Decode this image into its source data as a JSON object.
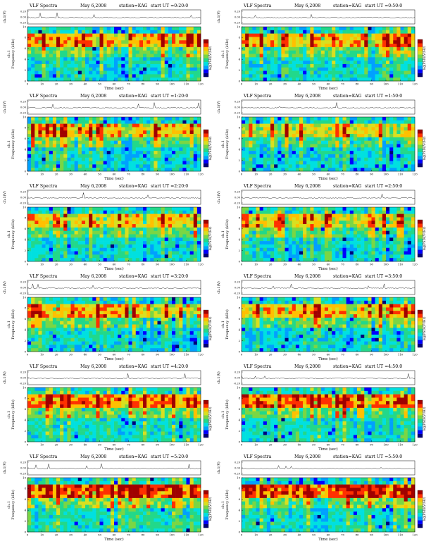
{
  "colors": {
    "scale": [
      "#00007a",
      "#0000ff",
      "#00a0ff",
      "#00e0e0",
      "#22d88a",
      "#7ad644",
      "#d8e020",
      "#ffc000",
      "#ff3000",
      "#a00000"
    ],
    "trace": "#000000",
    "background": "#ffffff"
  },
  "chart_data": [
    {
      "type": "heatmap",
      "title": "VLF Spectra",
      "date": "May 6,2008",
      "station": "station=KAG",
      "start": "start UT =0:20:0",
      "ylabel_top": "ch.1(V)",
      "yticks_top": [
        "0.20",
        "0.00",
        "-0.20"
      ],
      "ylabel": "ch.1\nFrequency (kHz)",
      "yticks": [
        "0",
        "2",
        "4",
        "6",
        "8",
        "10"
      ],
      "ylim": [
        0,
        10
      ],
      "xlabel": "Time (sec)",
      "xticks": [
        "0",
        "10",
        "20",
        "30",
        "40",
        "50",
        "60",
        "70",
        "80",
        "90",
        "100",
        "110",
        "120"
      ],
      "xlim": [
        0,
        120
      ],
      "colorbar_label": "log(PSD)(V²/Hz)",
      "intensity": 0.55
    },
    {
      "type": "heatmap",
      "title": "VLF Spectra",
      "date": "May 6,2008",
      "station": "station=KAG",
      "start": "start UT =0:50:0",
      "ylabel_top": "ch.1(V)",
      "yticks_top": [
        "0.20",
        "0.00",
        "-0.20"
      ],
      "ylabel": "ch.1\nFrequency (kHz)",
      "yticks": [
        "0",
        "2",
        "4",
        "6",
        "8",
        "10"
      ],
      "ylim": [
        0,
        10
      ],
      "xlabel": "Time (sec)",
      "xticks": [
        "0",
        "10",
        "20",
        "30",
        "40",
        "50",
        "60",
        "70",
        "80",
        "90",
        "100",
        "110",
        "120"
      ],
      "xlim": [
        0,
        120
      ],
      "colorbar_label": "log(PSD)(V²/Hz)",
      "intensity": 0.5
    },
    {
      "type": "heatmap",
      "title": "VLF Spectra",
      "date": "May 6,2008",
      "station": "station=KAG",
      "start": "start UT =1:20:0",
      "ylabel_top": "ch.1(V)",
      "yticks_top": [
        "0.20",
        "0.00",
        "-0.20"
      ],
      "ylabel": "ch.1\nFrequency (kHz)",
      "yticks": [
        "0",
        "2",
        "4",
        "6",
        "8",
        "10"
      ],
      "ylim": [
        0,
        10
      ],
      "xlabel": "Time (sec)",
      "xticks": [
        "0",
        "10",
        "20",
        "30",
        "40",
        "50",
        "60",
        "70",
        "80",
        "90",
        "100",
        "110",
        "120"
      ],
      "xlim": [
        0,
        120
      ],
      "colorbar_label": "log(PSD)(V²/Hz)",
      "intensity": 0.45
    },
    {
      "type": "heatmap",
      "title": "VLF Spectra",
      "date": "May 6,2008",
      "station": "station=KAG",
      "start": "start UT =1:50:0",
      "ylabel_top": "ch.1(V)",
      "yticks_top": [
        "0.20",
        "0.00",
        "-0.20"
      ],
      "ylabel": "ch.1\nFrequency (kHz)",
      "yticks": [
        "0",
        "2",
        "4",
        "6",
        "8",
        "10"
      ],
      "ylim": [
        0,
        10
      ],
      "xlabel": "Time (sec)",
      "xticks": [
        "0",
        "10",
        "20",
        "30",
        "40",
        "50",
        "60",
        "70",
        "80",
        "90",
        "100",
        "110",
        "120"
      ],
      "xlim": [
        0,
        120
      ],
      "colorbar_label": "log(PSD)(V²/Hz)",
      "intensity": 0.3
    },
    {
      "type": "heatmap",
      "title": "VLF Spectra",
      "date": "May 6,2008",
      "station": "station=KAG",
      "start": "start UT =2:20:0",
      "ylabel_top": "ch.1(V)",
      "yticks_top": [
        "0.20",
        "0.00",
        "-0.20"
      ],
      "ylabel": "ch.1\nFrequency (kHz)",
      "yticks": [
        "0",
        "2",
        "4",
        "6",
        "8",
        "10"
      ],
      "ylim": [
        0,
        10
      ],
      "xlabel": "Time (sec)",
      "xticks": [
        "0",
        "10",
        "20",
        "30",
        "40",
        "50",
        "60",
        "70",
        "80",
        "90",
        "100",
        "110",
        "120"
      ],
      "xlim": [
        0,
        120
      ],
      "colorbar_label": "log(PSD)(V²/Hz)",
      "intensity": 0.45
    },
    {
      "type": "heatmap",
      "title": "VLF Spectra",
      "date": "May 6,2008",
      "station": "station=KAG",
      "start": "start UT =2:50:0",
      "ylabel_top": "ch.1(V)",
      "yticks_top": [
        "0.20",
        "0.00",
        "-0.20"
      ],
      "ylabel": "ch.1\nFrequency (kHz)",
      "yticks": [
        "0",
        "2",
        "4",
        "6",
        "8",
        "10"
      ],
      "ylim": [
        0,
        10
      ],
      "xlabel": "Time (sec)",
      "xticks": [
        "0",
        "10",
        "20",
        "30",
        "40",
        "50",
        "60",
        "70",
        "80",
        "90",
        "100",
        "110",
        "120"
      ],
      "xlim": [
        0,
        120
      ],
      "colorbar_label": "log(PSD)(V²/Hz)",
      "intensity": 0.35
    },
    {
      "type": "heatmap",
      "title": "VLF Spectra",
      "date": "May 6,2008",
      "station": "station=KAG",
      "start": "start UT =3:20:0",
      "ylabel_top": "ch.1(V)",
      "yticks_top": [
        "0.20",
        "0.00",
        "-0.20"
      ],
      "ylabel": "ch.1\nFrequency (kHz)",
      "yticks": [
        "0",
        "2",
        "4",
        "6",
        "8",
        "10"
      ],
      "ylim": [
        0,
        10
      ],
      "xlabel": "Time (sec)",
      "xticks": [
        "0",
        "10",
        "20",
        "30",
        "40",
        "50",
        "60",
        "70",
        "80",
        "90",
        "100",
        "110",
        "120"
      ],
      "xlim": [
        0,
        120
      ],
      "colorbar_label": "log(PSD)(V²/Hz)",
      "intensity": 0.5
    },
    {
      "type": "heatmap",
      "title": "VLF Spectra",
      "date": "May 6,2008",
      "station": "station=KAG",
      "start": "start UT =3:50:0",
      "ylabel_top": "ch.1(V)",
      "yticks_top": [
        "0.20",
        "0.00",
        "-0.20"
      ],
      "ylabel": "ch.1\nFrequency (kHz)",
      "yticks": [
        "0",
        "2",
        "4",
        "6",
        "8",
        "10"
      ],
      "ylim": [
        0,
        10
      ],
      "xlabel": "Time (sec)",
      "xticks": [
        "0",
        "10",
        "20",
        "30",
        "40",
        "50",
        "60",
        "70",
        "80",
        "90",
        "100",
        "110",
        "120"
      ],
      "xlim": [
        0,
        120
      ],
      "colorbar_label": "log(PSD)(V²/Hz)",
      "intensity": 0.5
    },
    {
      "type": "heatmap",
      "title": "VLF Spectra",
      "date": "May 6,2008",
      "station": "station=KAG",
      "start": "start UT =4:20:0",
      "ylabel_top": "ch.1(V)",
      "yticks_top": [
        "0.20",
        "0.00",
        "-0.20"
      ],
      "ylabel": "ch.1\nFrequency (kHz)",
      "yticks": [
        "0",
        "2",
        "4",
        "6",
        "8",
        "10"
      ],
      "ylim": [
        0,
        10
      ],
      "xlabel": "Time (sec)",
      "xticks": [
        "0",
        "10",
        "20",
        "30",
        "40",
        "50",
        "60",
        "70",
        "80",
        "90",
        "100",
        "110",
        "120"
      ],
      "xlim": [
        0,
        120
      ],
      "colorbar_label": "log(PSD)(V²/Hz)",
      "intensity": 0.65
    },
    {
      "type": "heatmap",
      "title": "VLF Spectra",
      "date": "May 6,2008",
      "station": "station=KAG",
      "start": "start UT =4:50:0",
      "ylabel_top": "ch.1(V)",
      "yticks_top": [
        "0.20",
        "0.00",
        "-0.20"
      ],
      "ylabel": "ch.1\nFrequency (kHz)",
      "yticks": [
        "0",
        "2",
        "4",
        "6",
        "8",
        "10"
      ],
      "ylim": [
        0,
        10
      ],
      "xlabel": "Time (sec)",
      "xticks": [
        "0",
        "10",
        "20",
        "30",
        "40",
        "50",
        "60",
        "70",
        "80",
        "90",
        "100",
        "110",
        "120"
      ],
      "xlim": [
        0,
        120
      ],
      "colorbar_label": "log(PSD)(V²/Hz)",
      "intensity": 0.7
    },
    {
      "type": "heatmap",
      "title": "VLF Spectra",
      "date": "May 6,2008",
      "station": "station=KAG",
      "start": "start UT =5:20:0",
      "ylabel_top": "ch.1(V)",
      "yticks_top": [
        "0.20",
        "0.00",
        "-0.20"
      ],
      "ylabel": "ch.1\nFrequency (kHz)",
      "yticks": [
        "0",
        "2",
        "4",
        "6",
        "8",
        "10"
      ],
      "ylim": [
        0,
        10
      ],
      "xlabel": "Time (sec)",
      "xticks": [
        "0",
        "10",
        "20",
        "30",
        "40",
        "50",
        "60",
        "70",
        "80",
        "90",
        "100",
        "110",
        "120"
      ],
      "xlim": [
        0,
        120
      ],
      "colorbar_label": "log(PSD)(V²/Hz)",
      "intensity": 0.8
    },
    {
      "type": "heatmap",
      "title": "VLF Spectra",
      "date": "May 6,2008",
      "station": "station=KAG",
      "start": "start UT =5:50:0",
      "ylabel_top": "ch.1(V)",
      "yticks_top": [
        "0.20",
        "0.00",
        "-0.20"
      ],
      "ylabel": "ch.1\nFrequency (kHz)",
      "yticks": [
        "0",
        "2",
        "4",
        "6",
        "8",
        "10"
      ],
      "ylim": [
        0,
        10
      ],
      "xlabel": "Time (sec)",
      "xticks": [
        "0",
        "10",
        "20",
        "30",
        "40",
        "50",
        "60",
        "70",
        "80",
        "90",
        "100",
        "110",
        "120"
      ],
      "xlim": [
        0,
        120
      ],
      "colorbar_label": "log(PSD)(V²/Hz)",
      "intensity": 0.9
    }
  ]
}
